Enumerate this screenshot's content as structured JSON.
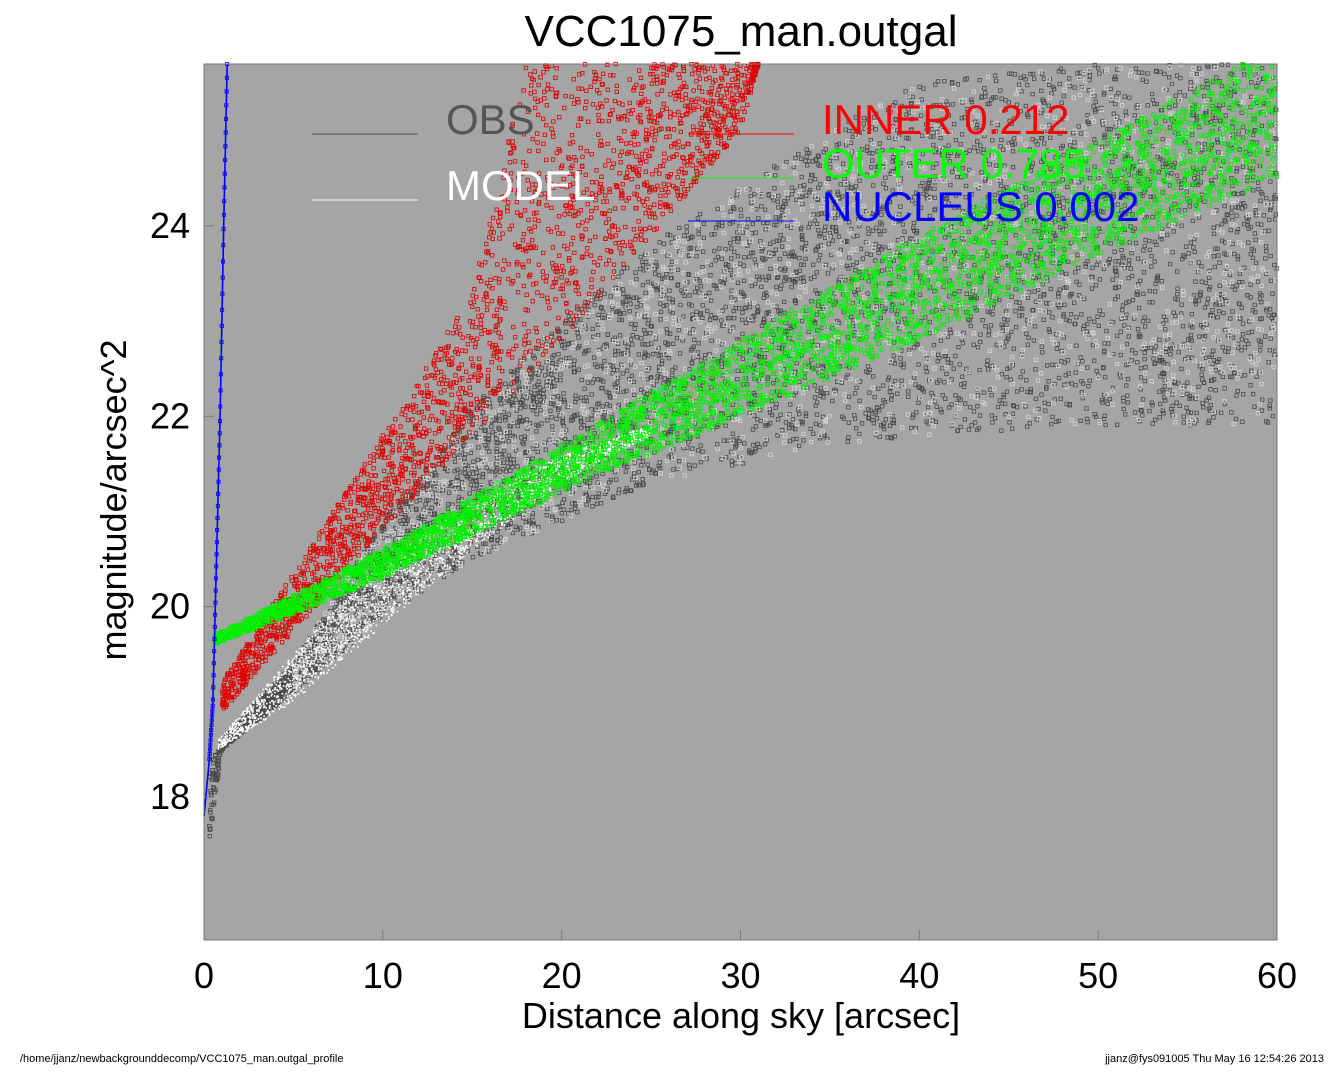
{
  "chart_data": {
    "type": "scatter",
    "title": "VCC1075_man.outgal",
    "xlabel": "Distance along sky [arcsec]",
    "ylabel": "magnitude/arcsec^2",
    "xlim": [
      0,
      60
    ],
    "ylim": [
      25.7,
      16.5
    ],
    "y_inverted": true,
    "x_ticks": [
      "0",
      "10",
      "20",
      "30",
      "40",
      "50",
      "60"
    ],
    "y_ticks": [
      "18",
      "20",
      "22",
      "24"
    ],
    "x_tick_values": [
      0,
      10,
      20,
      30,
      40,
      50,
      60
    ],
    "y_tick_values": [
      18,
      20,
      22,
      24
    ],
    "plot_background": "#a5a5a5",
    "grid": false,
    "legend_placement": "top",
    "series": [
      {
        "name": "OBS",
        "label": "OBS",
        "color": "#555555",
        "upper_edge": [
          [
            0.3,
            17.5
          ],
          [
            1,
            18.5
          ],
          [
            5,
            19.1
          ],
          [
            10,
            19.9
          ],
          [
            15,
            20.5
          ],
          [
            20,
            20.9
          ],
          [
            25,
            21.3
          ],
          [
            30,
            21.5
          ],
          [
            35,
            21.7
          ],
          [
            40,
            21.8
          ],
          [
            50,
            21.9
          ],
          [
            60,
            21.9
          ]
        ],
        "lower_edge": [
          [
            0.3,
            18.3
          ],
          [
            1,
            18.6
          ],
          [
            5,
            19.4
          ],
          [
            10,
            20.9
          ],
          [
            15,
            22.1
          ],
          [
            20,
            23.0
          ],
          [
            25,
            23.8
          ],
          [
            30,
            24.4
          ],
          [
            35,
            25.0
          ],
          [
            40,
            25.5
          ],
          [
            50,
            25.7
          ],
          [
            60,
            25.7
          ]
        ]
      },
      {
        "name": "MODEL",
        "label": "MODEL",
        "color": "#ffffff",
        "upper_edge": [
          [
            0.8,
            18.5
          ],
          [
            5,
            19.0
          ],
          [
            10,
            19.8
          ],
          [
            15,
            20.6
          ],
          [
            20,
            21.3
          ],
          [
            25,
            21.8
          ]
        ],
        "lower_edge": [
          [
            0.8,
            18.6
          ],
          [
            5,
            19.5
          ],
          [
            10,
            20.5
          ],
          [
            15,
            21.1
          ],
          [
            20,
            21.6
          ],
          [
            25,
            21.9
          ]
        ]
      },
      {
        "name": "INNER",
        "label": "INNER  0.212",
        "value": 0.212,
        "color": "#ff0000",
        "upper_edge": [
          [
            1,
            18.9
          ],
          [
            10,
            20.8
          ],
          [
            20,
            22.8
          ],
          [
            30,
            25.0
          ],
          [
            31,
            25.7
          ]
        ],
        "lower_edge": [
          [
            1,
            19.2
          ],
          [
            10,
            21.8
          ],
          [
            15,
            23.3
          ],
          [
            18,
            25.7
          ]
        ]
      },
      {
        "name": "OUTER",
        "label": "OUTER  0.785",
        "value": 0.785,
        "color": "#00ff00",
        "upper_edge": [
          [
            0.6,
            19.6
          ],
          [
            10,
            20.3
          ],
          [
            20,
            21.2
          ],
          [
            30,
            22.0
          ],
          [
            40,
            22.8
          ],
          [
            50,
            23.7
          ],
          [
            60,
            24.5
          ]
        ],
        "lower_edge": [
          [
            0.6,
            19.7
          ],
          [
            10,
            20.6
          ],
          [
            20,
            21.7
          ],
          [
            30,
            22.8
          ],
          [
            40,
            23.9
          ],
          [
            50,
            24.9
          ],
          [
            60,
            25.9
          ]
        ]
      },
      {
        "name": "NUCLEUS",
        "label": "NUCLEUS  0.002",
        "value": 0.002,
        "color": "#0000ff",
        "points": [
          [
            0.0,
            17.8
          ],
          [
            0.3,
            18.4
          ],
          [
            0.5,
            19.0
          ],
          [
            0.7,
            20.5
          ],
          [
            0.9,
            22.0
          ],
          [
            1.1,
            24.0
          ],
          [
            1.3,
            25.7
          ]
        ]
      }
    ]
  },
  "footer": {
    "left": "/home/jjanz/newbackgrounddecomp/VCC1075_man.outgal_profile",
    "right": "jjanz@fys091005  Thu May 16 12:54:26 2013"
  }
}
